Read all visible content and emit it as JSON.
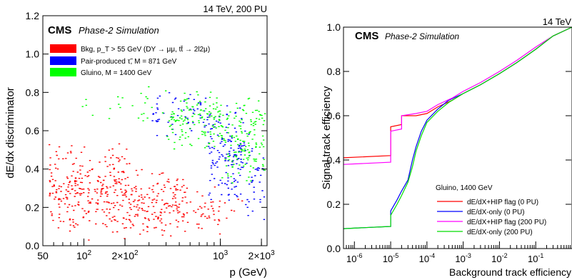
{
  "chart_data": [
    {
      "type": "scatter",
      "title": "",
      "header_right": "14 TeV, 200 PU",
      "cms_label": "CMS",
      "cms_sublabel": "Phase-2 Simulation",
      "xlabel": "p (GeV)",
      "ylabel": "dE/dx discriminator",
      "x_scale": "log",
      "xlim": [
        50,
        2200
      ],
      "ylim": [
        0,
        1.2
      ],
      "x_ticks": [
        {
          "value": 50,
          "label": "50"
        },
        {
          "value": 100,
          "label": "10^2"
        },
        {
          "value": 200,
          "label": "2×10^2"
        },
        {
          "value": 1000,
          "label": "10^3"
        },
        {
          "value": 2000,
          "label": "2×10^3"
        }
      ],
      "y_ticks": [
        {
          "value": 0,
          "label": "0.0"
        },
        {
          "value": 0.2,
          "label": "0.2"
        },
        {
          "value": 0.4,
          "label": "0.4"
        },
        {
          "value": 0.6,
          "label": "0.6"
        },
        {
          "value": 0.8,
          "label": "0.8"
        },
        {
          "value": 1.0,
          "label": "1.0"
        },
        {
          "value": 1.2,
          "label": "1.2"
        }
      ],
      "legend_position": "top-left",
      "series": [
        {
          "name": "Bkg, p_T > 55 GeV (DY → μμ, tt̄ → 2l2μ)",
          "color": "#ff0000",
          "regions": [
            {
              "x_range": [
                55,
                220
              ],
              "y_range": [
                0.02,
                0.55
              ],
              "density": "high"
            },
            {
              "x_range": [
                220,
                560
              ],
              "y_range": [
                0.02,
                0.42
              ],
              "density": "high"
            },
            {
              "x_range": [
                560,
                1100
              ],
              "y_range": [
                0.05,
                0.33
              ],
              "density": "medium"
            },
            {
              "x_range": [
                1100,
                2000
              ],
              "y_range": [
                0.15,
                0.25
              ],
              "density": "low"
            }
          ]
        },
        {
          "name": "Pair-produced τ̃, M = 871 GeV",
          "color": "#0000ff",
          "regions": [
            {
              "x_range": [
                300,
                800
              ],
              "y_range": [
                0.55,
                0.82
              ],
              "density": "medium"
            },
            {
              "x_range": [
                800,
                1500
              ],
              "y_range": [
                0.2,
                0.75
              ],
              "density": "high"
            },
            {
              "x_range": [
                1500,
                2100
              ],
              "y_range": [
                0.1,
                0.6
              ],
              "density": "medium"
            }
          ]
        },
        {
          "name": "Gluino, M = 1400 GeV",
          "color": "#00ff00",
          "regions": [
            {
              "x_range": [
                90,
                400
              ],
              "y_range": [
                0.62,
                0.84
              ],
              "density": "low"
            },
            {
              "x_range": [
                400,
                1000
              ],
              "y_range": [
                0.5,
                0.84
              ],
              "density": "high"
            },
            {
              "x_range": [
                1000,
                2100
              ],
              "y_range": [
                0.3,
                0.8
              ],
              "density": "high"
            }
          ]
        }
      ]
    },
    {
      "type": "line",
      "title": "",
      "header_right": "14 TeV",
      "cms_label": "CMS",
      "cms_sublabel": "Phase-2 Simulation",
      "xlabel": "Background track efficiency",
      "ylabel": "Signal track efficiency",
      "x_scale": "log",
      "xlim": [
        5e-07,
        1
      ],
      "ylim": [
        0,
        1
      ],
      "x_ticks": [
        {
          "value": 1e-06,
          "label": "10^-6"
        },
        {
          "value": 1e-05,
          "label": "10^-5"
        },
        {
          "value": 0.0001,
          "label": "10^-4"
        },
        {
          "value": 0.001,
          "label": "10^-3"
        },
        {
          "value": 0.01,
          "label": "10^-2"
        },
        {
          "value": 0.1,
          "label": "10^-1"
        }
      ],
      "y_ticks": [
        {
          "value": 0,
          "label": "0.0"
        },
        {
          "value": 0.2,
          "label": "0.2"
        },
        {
          "value": 0.4,
          "label": "0.4"
        },
        {
          "value": 0.6,
          "label": "0.6"
        },
        {
          "value": 0.8,
          "label": "0.8"
        },
        {
          "value": 1.0,
          "label": "1.0"
        }
      ],
      "legend_title": "Gluino, 1400 GeV",
      "legend_position": "bottom-right",
      "series": [
        {
          "name": "dE/dX+HIP flag (0 PU)",
          "color": "#ff0000",
          "x": [
            5e-07,
            1e-05,
            1e-05,
            2e-05,
            2e-05,
            5e-05,
            0.0001,
            0.0002,
            0.0005,
            0.001,
            0.003,
            0.01,
            0.03,
            0.1,
            0.3,
            1
          ],
          "y": [
            0.41,
            0.42,
            0.55,
            0.56,
            0.6,
            0.6,
            0.61,
            0.64,
            0.67,
            0.7,
            0.74,
            0.79,
            0.84,
            0.9,
            0.96,
            1.0
          ]
        },
        {
          "name": "dE/dX-only (0 PU)",
          "color": "#0000ff",
          "x": [
            5e-07,
            1e-05,
            1e-05,
            1.5e-05,
            2e-05,
            3e-05,
            4e-05,
            5e-05,
            7e-05,
            0.0001,
            0.0002,
            0.0004,
            0.001,
            0.003,
            0.01,
            0.03,
            0.1,
            0.3,
            1
          ],
          "y": [
            0.09,
            0.1,
            0.17,
            0.22,
            0.26,
            0.31,
            0.4,
            0.46,
            0.53,
            0.58,
            0.63,
            0.67,
            0.7,
            0.74,
            0.79,
            0.84,
            0.9,
            0.96,
            1.0
          ]
        },
        {
          "name": "dE/dX+HIP flag (200 PU)",
          "color": "#ff00ff",
          "x": [
            5e-07,
            1e-05,
            1e-05,
            2e-05,
            2e-05,
            5e-05,
            0.0001,
            0.0002,
            0.0005,
            0.001,
            0.003,
            0.01,
            0.03,
            0.1,
            0.3,
            1
          ],
          "y": [
            0.38,
            0.39,
            0.53,
            0.54,
            0.6,
            0.61,
            0.62,
            0.65,
            0.68,
            0.71,
            0.75,
            0.8,
            0.85,
            0.91,
            0.96,
            1.0
          ]
        },
        {
          "name": "dE/dX-only (200 PU)",
          "color": "#00dd00",
          "x": [
            5e-07,
            1e-05,
            1e-05,
            1.5e-05,
            2e-05,
            3e-05,
            4e-05,
            5e-05,
            7e-05,
            0.0001,
            0.0002,
            0.0004,
            0.001,
            0.003,
            0.01,
            0.03,
            0.1,
            0.3,
            1
          ],
          "y": [
            0.09,
            0.1,
            0.15,
            0.2,
            0.24,
            0.3,
            0.37,
            0.44,
            0.51,
            0.57,
            0.62,
            0.66,
            0.7,
            0.74,
            0.79,
            0.84,
            0.9,
            0.96,
            1.0
          ]
        }
      ]
    }
  ]
}
